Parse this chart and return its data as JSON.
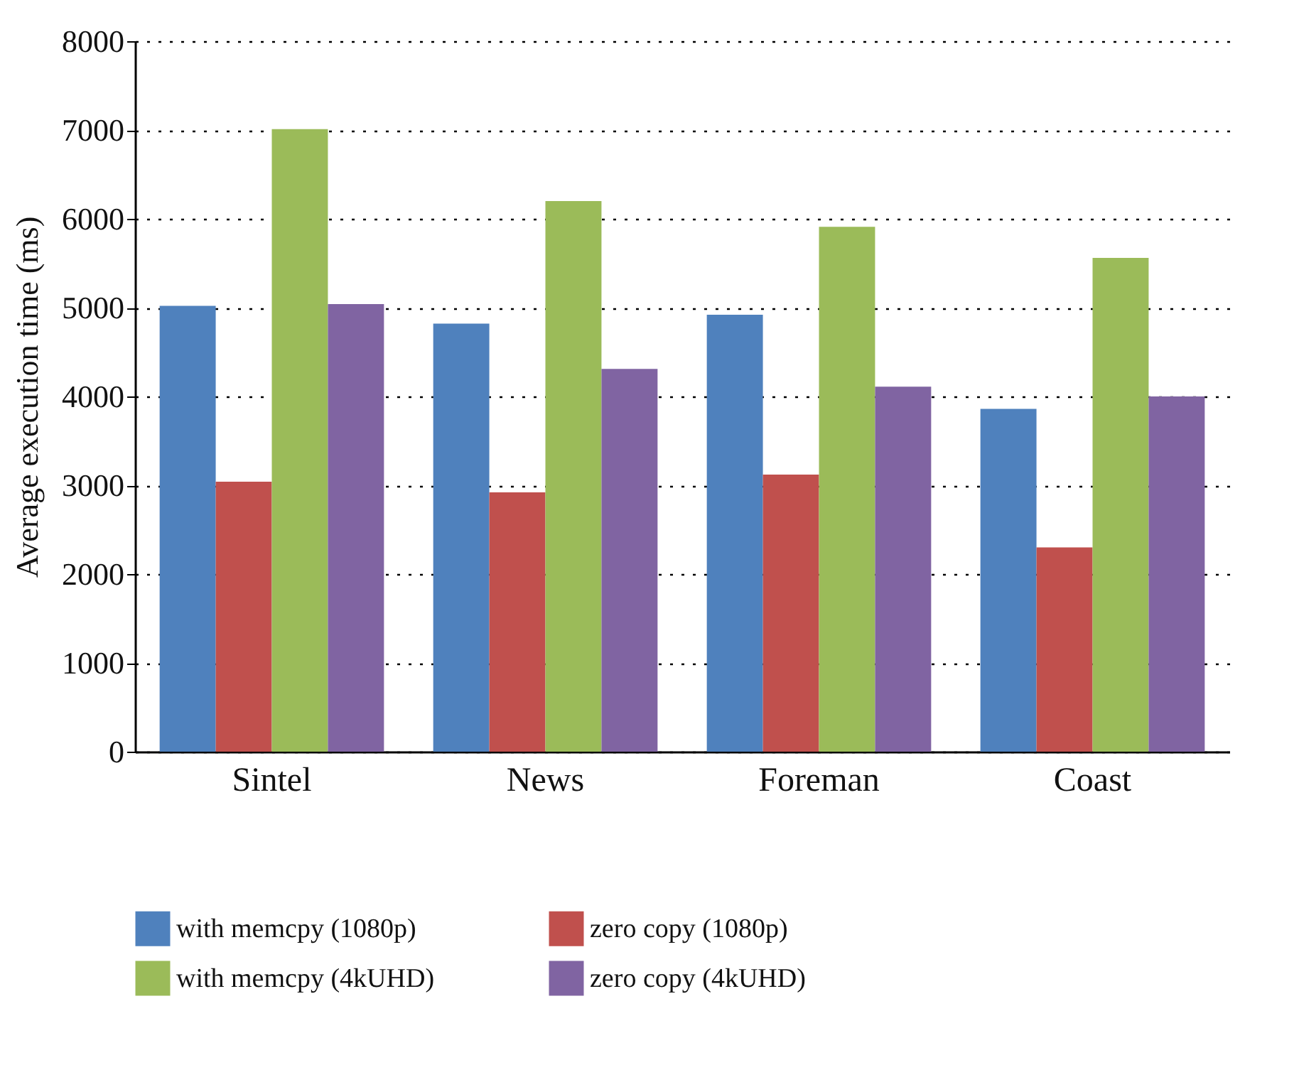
{
  "chart_data": {
    "type": "bar",
    "ylabel": "Average execution time (ms)",
    "categories": [
      "Sintel",
      "News",
      "Foreman",
      "Coast"
    ],
    "series": [
      {
        "name": "with memcpy (1080p)",
        "color": "#4f81bd",
        "values": [
          5020,
          4820,
          4920,
          3860
        ]
      },
      {
        "name": "zero copy (1080p)",
        "color": "#c0504d",
        "values": [
          3040,
          2920,
          3120,
          2300
        ]
      },
      {
        "name": "with memcpy (4kUHD)",
        "color": "#9bbb59",
        "values": [
          7010,
          6200,
          5910,
          5560
        ]
      },
      {
        "name": "zero copy (4kUHD)",
        "color": "#8064a2",
        "values": [
          5040,
          4310,
          4110,
          4000
        ]
      }
    ],
    "ylim": [
      0,
      8000
    ],
    "yticks": [
      0,
      1000,
      2000,
      3000,
      4000,
      5000,
      6000,
      7000,
      8000
    ],
    "grid": "y",
    "legend": "bottom"
  }
}
